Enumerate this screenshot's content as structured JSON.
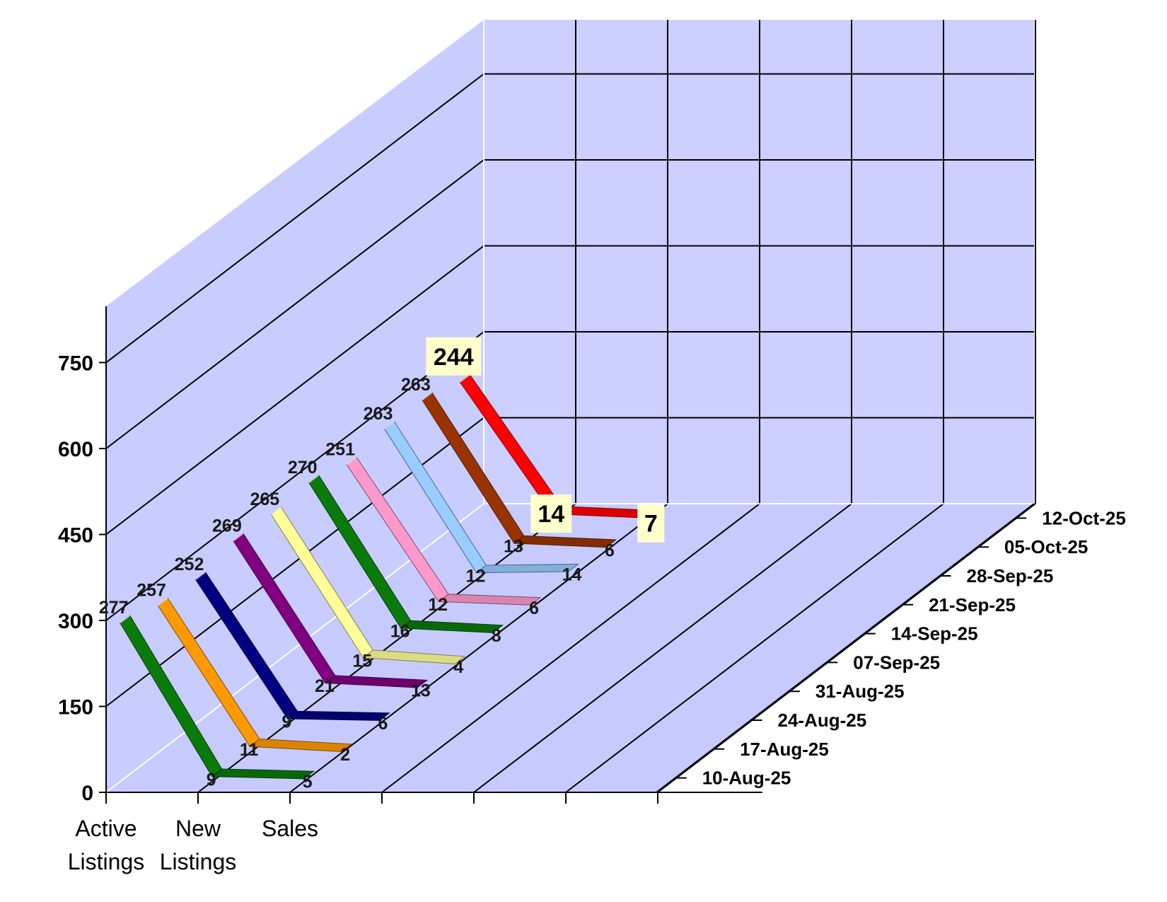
{
  "chart_data": {
    "type": "line",
    "title": "",
    "xlabel": "",
    "ylabel": "",
    "categories": [
      [
        "Active",
        "Listings"
      ],
      [
        "New",
        "Listings"
      ],
      [
        "Sales"
      ]
    ],
    "ylim": [
      0,
      750
    ],
    "yticks": [
      0,
      150,
      300,
      450,
      600,
      750
    ],
    "grid": true,
    "legend": "none",
    "series": [
      {
        "name": "10-Aug-25",
        "values": [
          277,
          9,
          5
        ],
        "color": "#0a7a0a"
      },
      {
        "name": "17-Aug-25",
        "values": [
          257,
          11,
          2
        ],
        "color": "#ff9900"
      },
      {
        "name": "24-Aug-25",
        "values": [
          252,
          9,
          6
        ],
        "color": "#000080"
      },
      {
        "name": "31-Aug-25",
        "values": [
          269,
          21,
          13
        ],
        "color": "#800080"
      },
      {
        "name": "07-Sep-25",
        "values": [
          265,
          15,
          4
        ],
        "color": "#ffff99"
      },
      {
        "name": "14-Sep-25",
        "values": [
          270,
          16,
          8
        ],
        "color": "#0a7a0a"
      },
      {
        "name": "21-Sep-25",
        "values": [
          251,
          12,
          6
        ],
        "color": "#ff99cc"
      },
      {
        "name": "28-Sep-25",
        "values": [
          263,
          12,
          14
        ],
        "color": "#99ccff"
      },
      {
        "name": "05-Oct-25",
        "values": [
          263,
          13,
          6
        ],
        "color": "#993300"
      },
      {
        "name": "12-Oct-25",
        "values": [
          244,
          14,
          7
        ],
        "color": "#ff0000"
      }
    ]
  }
}
